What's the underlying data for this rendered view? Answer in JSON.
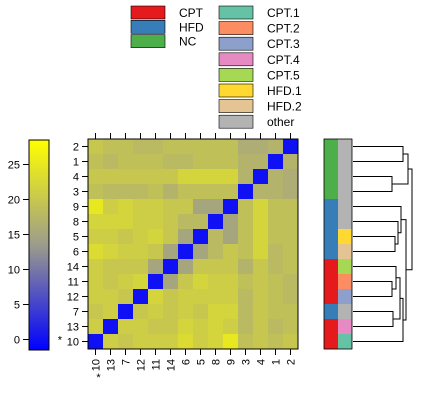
{
  "chart_data": {
    "type": "heatmap",
    "title": "",
    "xlabel": "",
    "ylabel": "",
    "row_labels": [
      "2",
      "1",
      "4",
      "3",
      "9",
      "8",
      "5",
      "6",
      "14",
      "11",
      "12",
      "7",
      "13",
      "10"
    ],
    "col_labels": [
      "10",
      "13",
      "7",
      "12",
      "11",
      "14",
      "6",
      "5",
      "8",
      "9",
      "3",
      "4",
      "1",
      "2"
    ],
    "row_marker": {
      "label": "10",
      "symbol": "*"
    },
    "col_marker": {
      "label": "10",
      "symbol": "*"
    },
    "colorbar": {
      "ticks": [
        0,
        5,
        10,
        15,
        20,
        25
      ],
      "range": [
        -1.5,
        28.5
      ],
      "colors": [
        "#0000ff",
        "#9c9c8c",
        "#ffff00"
      ]
    },
    "values": [
      [
        20,
        19,
        19,
        18,
        18,
        19,
        19,
        19,
        19,
        19,
        16,
        16,
        17,
        0
      ],
      [
        19,
        18,
        19,
        19,
        19,
        18,
        18,
        19,
        19,
        19,
        17,
        17,
        0,
        17
      ],
      [
        20,
        20,
        20,
        20,
        20,
        20,
        22,
        22,
        22,
        22,
        17,
        0,
        17,
        16
      ],
      [
        19,
        18,
        18,
        18,
        19,
        17,
        19,
        19,
        19,
        19,
        0,
        17,
        17,
        16
      ],
      [
        25,
        21,
        22,
        21,
        21,
        20,
        20,
        15,
        15,
        0,
        19,
        22,
        19,
        19
      ],
      [
        22,
        22,
        22,
        21,
        21,
        20,
        18,
        18,
        0,
        15,
        19,
        22,
        19,
        19
      ],
      [
        21,
        21,
        20,
        21,
        22,
        20,
        15,
        0,
        18,
        15,
        19,
        22,
        19,
        19
      ],
      [
        23,
        22,
        21,
        21,
        20,
        15,
        0,
        15,
        18,
        20,
        19,
        22,
        18,
        19
      ],
      [
        21,
        20,
        20,
        20,
        15,
        0,
        15,
        20,
        20,
        20,
        17,
        20,
        18,
        19
      ],
      [
        21,
        20,
        21,
        22,
        0,
        15,
        20,
        22,
        21,
        21,
        19,
        20,
        19,
        18
      ],
      [
        21,
        21,
        20,
        0,
        22,
        20,
        21,
        21,
        21,
        21,
        18,
        20,
        19,
        18
      ],
      [
        20,
        21,
        0,
        20,
        21,
        20,
        21,
        20,
        22,
        22,
        18,
        20,
        19,
        19
      ],
      [
        21,
        0,
        21,
        21,
        20,
        20,
        22,
        21,
        22,
        21,
        18,
        20,
        18,
        19
      ],
      [
        0,
        21,
        20,
        21,
        21,
        21,
        23,
        21,
        22,
        25,
        19,
        20,
        19,
        20
      ]
    ],
    "row_groups": [
      "NC",
      "NC",
      "NC",
      "NC",
      "HFD",
      "HFD",
      "HFD",
      "HFD",
      "CPT",
      "CPT",
      "CPT",
      "HFD",
      "CPT",
      "CPT"
    ],
    "row_subgroups": [
      "other",
      "other",
      "other",
      "other",
      "other",
      "other",
      "HFD.1",
      "HFD.2",
      "CPT.5",
      "CPT.2",
      "CPT.3",
      "other",
      "CPT.4",
      "CPT.1"
    ],
    "legend_groups": [
      {
        "label": "CPT",
        "color": "#e41a1c"
      },
      {
        "label": "HFD",
        "color": "#377eb8"
      },
      {
        "label": "NC",
        "color": "#4daf4a"
      }
    ],
    "legend_subgroups": [
      {
        "label": "CPT.1",
        "color": "#66c2a5"
      },
      {
        "label": "CPT.2",
        "color": "#fc8d62"
      },
      {
        "label": "CPT.3",
        "color": "#8da0cb"
      },
      {
        "label": "CPT.4",
        "color": "#e78ac3"
      },
      {
        "label": "CPT.5",
        "color": "#a6d854"
      },
      {
        "label": "HFD.1",
        "color": "#ffd92f"
      },
      {
        "label": "HFD.2",
        "color": "#e5c494"
      },
      {
        "label": "other",
        "color": "#b3b3b3"
      }
    ],
    "dendrogram": "row clustering tree"
  }
}
